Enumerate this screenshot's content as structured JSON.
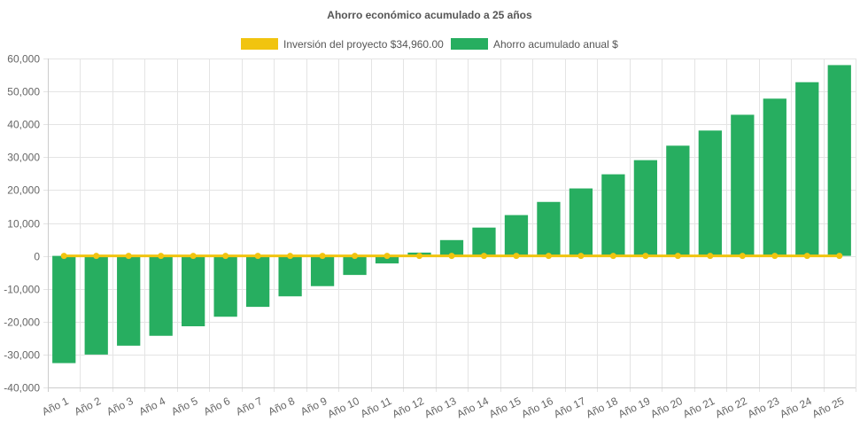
{
  "chart_data": {
    "type": "bar",
    "title": "Ahorro económico acumulado a 25 años",
    "xlabel": "",
    "ylabel": "",
    "ylim": [
      -40000,
      60000
    ],
    "yticks": [
      60000,
      50000,
      40000,
      30000,
      20000,
      10000,
      0,
      -10000,
      -20000,
      -30000,
      -40000
    ],
    "ytick_labels": [
      "60,000",
      "50,000",
      "40,000",
      "30,000",
      "20,000",
      "10,000",
      "0",
      "-10,000",
      "-20,000",
      "-30,000",
      "-40,000"
    ],
    "grid": true,
    "legend_position": "top",
    "categories": [
      "Año 1",
      "Año 2",
      "Año 3",
      "Año 4",
      "Año 5",
      "Año 6",
      "Año 7",
      "Año 8",
      "Año 9",
      "Año 10",
      "Año 11",
      "Año 12",
      "Año 13",
      "Año 14",
      "Año 15",
      "Año 16",
      "Año 17",
      "Año 18",
      "Año 19",
      "Año 20",
      "Año 21",
      "Año 22",
      "Año 23",
      "Año 24",
      "Año 25"
    ],
    "series": [
      {
        "name": "Inversión del proyecto $34,960.00",
        "type": "line",
        "color": "#f1c40f",
        "values": [
          0,
          0,
          0,
          0,
          0,
          0,
          0,
          0,
          0,
          0,
          0,
          0,
          0,
          0,
          0,
          0,
          0,
          0,
          0,
          0,
          0,
          0,
          0,
          0,
          0
        ]
      },
      {
        "name": "Ahorro acumulado anual $",
        "type": "bar",
        "color": "#27ae60",
        "values": [
          -32600,
          -30000,
          -27300,
          -24300,
          -21400,
          -18500,
          -15500,
          -12300,
          -9200,
          -5800,
          -2300,
          1000,
          4800,
          8600,
          12400,
          16400,
          20500,
          24800,
          29100,
          33500,
          38100,
          42900,
          47800,
          52800,
          58000
        ]
      }
    ]
  }
}
